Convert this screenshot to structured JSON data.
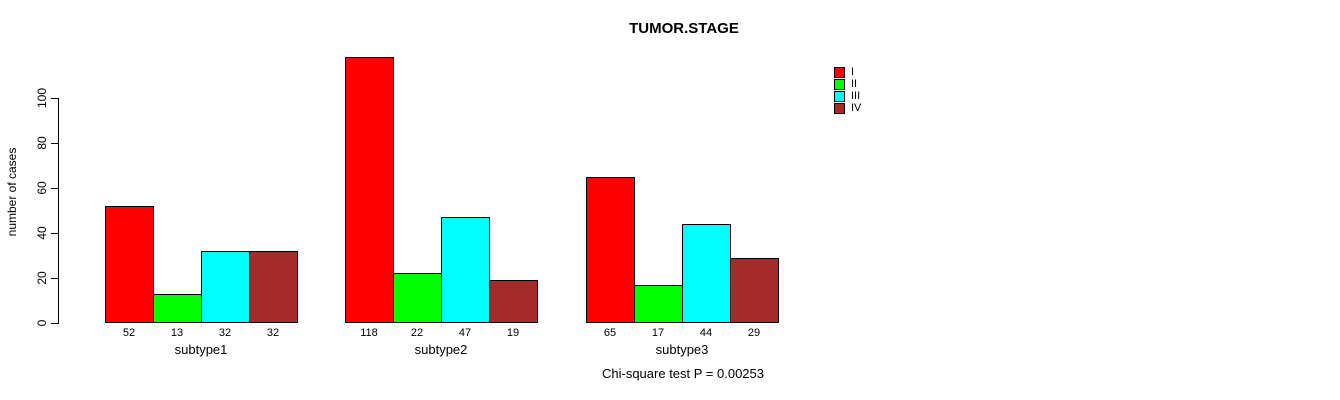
{
  "chart_data": {
    "type": "bar",
    "title": "TUMOR.STAGE",
    "ylabel": "number of cases",
    "xlabel": "",
    "categories": [
      "subtype1",
      "subtype2",
      "subtype3"
    ],
    "series": [
      {
        "name": "I",
        "color": "#ff0000",
        "values": [
          52,
          118,
          65
        ]
      },
      {
        "name": "II",
        "color": "#00ff00",
        "values": [
          13,
          22,
          17
        ]
      },
      {
        "name": "III",
        "color": "#00ffff",
        "values": [
          32,
          47,
          44
        ]
      },
      {
        "name": "IV",
        "color": "#a52a2a",
        "values": [
          32,
          19,
          29
        ]
      }
    ],
    "bar_value_labels": true,
    "yticks": [
      0,
      20,
      40,
      60,
      80,
      100
    ],
    "ylim": [
      0,
      120
    ],
    "grid": false,
    "legend": {
      "position": "top-right",
      "entries": [
        "I",
        "II",
        "III",
        "IV"
      ]
    },
    "annotation": "Chi-square test P = 0.00253"
  }
}
